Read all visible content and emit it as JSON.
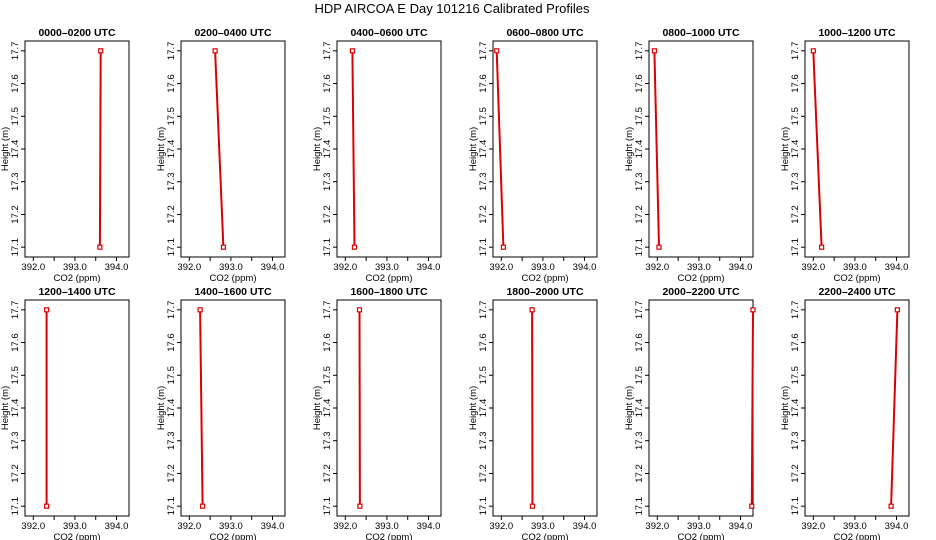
{
  "figure_title": "HDP AIRCOA E  Day 101216  Calibrated Profiles",
  "chart_data": [
    {
      "type": "line",
      "title": "0000–0200 UTC",
      "xlabel": "CO2 (ppm)",
      "ylabel": "Height (m)",
      "xlim": [
        391.8,
        394.3
      ],
      "ylim": [
        17.07,
        17.73
      ],
      "xticks": [
        "392.0",
        "393.0",
        "394.0"
      ],
      "yticks": [
        "17.1",
        "17.2",
        "17.3",
        "17.4",
        "17.5",
        "17.6",
        "17.7"
      ],
      "series": [
        {
          "x": [
            393.6,
            393.62
          ],
          "y": [
            17.1,
            17.7
          ]
        }
      ]
    },
    {
      "type": "line",
      "title": "0200–0400 UTC",
      "xlabel": "CO2 (ppm)",
      "ylabel": "Height (m)",
      "xlim": [
        391.8,
        394.3
      ],
      "ylim": [
        17.07,
        17.73
      ],
      "xticks": [
        "392.0",
        "393.0",
        "394.0"
      ],
      "yticks": [
        "17.1",
        "17.2",
        "17.3",
        "17.4",
        "17.5",
        "17.6",
        "17.7"
      ],
      "series": [
        {
          "x": [
            392.82,
            392.62
          ],
          "y": [
            17.1,
            17.7
          ]
        }
      ]
    },
    {
      "type": "line",
      "title": "0400–0600 UTC",
      "xlabel": "CO2 (ppm)",
      "ylabel": "Height (m)",
      "xlim": [
        391.8,
        394.3
      ],
      "ylim": [
        17.07,
        17.73
      ],
      "xticks": [
        "392.0",
        "393.0",
        "394.0"
      ],
      "yticks": [
        "17.1",
        "17.2",
        "17.3",
        "17.4",
        "17.5",
        "17.6",
        "17.7"
      ],
      "series": [
        {
          "x": [
            392.22,
            392.17
          ],
          "y": [
            17.1,
            17.7
          ]
        }
      ]
    },
    {
      "type": "line",
      "title": "0600–0800 UTC",
      "xlabel": "CO2 (ppm)",
      "ylabel": "Height (m)",
      "xlim": [
        391.8,
        394.3
      ],
      "ylim": [
        17.07,
        17.73
      ],
      "xticks": [
        "392.0",
        "393.0",
        "394.0"
      ],
      "yticks": [
        "17.1",
        "17.2",
        "17.3",
        "17.4",
        "17.5",
        "17.6",
        "17.7"
      ],
      "series": [
        {
          "x": [
            392.05,
            391.89
          ],
          "y": [
            17.1,
            17.7
          ]
        }
      ]
    },
    {
      "type": "line",
      "title": "0800–1000 UTC",
      "xlabel": "CO2 (ppm)",
      "ylabel": "Height (m)",
      "xlim": [
        391.8,
        394.3
      ],
      "ylim": [
        17.07,
        17.73
      ],
      "xticks": [
        "392.0",
        "393.0",
        "394.0"
      ],
      "yticks": [
        "17.1",
        "17.2",
        "17.3",
        "17.4",
        "17.5",
        "17.6",
        "17.7"
      ],
      "series": [
        {
          "x": [
            392.04,
            391.93
          ],
          "y": [
            17.1,
            17.7
          ]
        }
      ]
    },
    {
      "type": "line",
      "title": "1000–1200 UTC",
      "xlabel": "CO2 (ppm)",
      "ylabel": "Height (m)",
      "xlim": [
        391.8,
        394.3
      ],
      "ylim": [
        17.07,
        17.73
      ],
      "xticks": [
        "392.0",
        "393.0",
        "394.0"
      ],
      "yticks": [
        "17.1",
        "17.2",
        "17.3",
        "17.4",
        "17.5",
        "17.6",
        "17.7"
      ],
      "series": [
        {
          "x": [
            392.2,
            392.0
          ],
          "y": [
            17.1,
            17.7
          ]
        }
      ]
    },
    {
      "type": "line",
      "title": "1200–1400 UTC",
      "xlabel": "CO2 (ppm)",
      "ylabel": "Height (m)",
      "xlim": [
        391.8,
        394.3
      ],
      "ylim": [
        17.07,
        17.73
      ],
      "xticks": [
        "392.0",
        "393.0",
        "394.0"
      ],
      "yticks": [
        "17.1",
        "17.2",
        "17.3",
        "17.4",
        "17.5",
        "17.6",
        "17.7"
      ],
      "series": [
        {
          "x": [
            392.32,
            392.32
          ],
          "y": [
            17.1,
            17.7
          ]
        }
      ]
    },
    {
      "type": "line",
      "title": "1400–1600 UTC",
      "xlabel": "CO2 (ppm)",
      "ylabel": "Height (m)",
      "xlim": [
        391.8,
        394.3
      ],
      "ylim": [
        17.07,
        17.73
      ],
      "xticks": [
        "392.0",
        "393.0",
        "394.0"
      ],
      "yticks": [
        "17.1",
        "17.2",
        "17.3",
        "17.4",
        "17.5",
        "17.6",
        "17.7"
      ],
      "series": [
        {
          "x": [
            392.32,
            392.26
          ],
          "y": [
            17.1,
            17.7
          ]
        }
      ]
    },
    {
      "type": "line",
      "title": "1600–1800 UTC",
      "xlabel": "CO2 (ppm)",
      "ylabel": "Height (m)",
      "xlim": [
        391.8,
        394.3
      ],
      "ylim": [
        17.07,
        17.73
      ],
      "xticks": [
        "392.0",
        "393.0",
        "394.0"
      ],
      "yticks": [
        "17.1",
        "17.2",
        "17.3",
        "17.4",
        "17.5",
        "17.6",
        "17.7"
      ],
      "series": [
        {
          "x": [
            392.35,
            392.34
          ],
          "y": [
            17.1,
            17.7
          ]
        }
      ]
    },
    {
      "type": "line",
      "title": "1800–2000 UTC",
      "xlabel": "CO2 (ppm)",
      "ylabel": "Height (m)",
      "xlim": [
        391.8,
        394.3
      ],
      "ylim": [
        17.07,
        17.73
      ],
      "xticks": [
        "392.0",
        "393.0",
        "394.0"
      ],
      "yticks": [
        "17.1",
        "17.2",
        "17.3",
        "17.4",
        "17.5",
        "17.6",
        "17.7"
      ],
      "series": [
        {
          "x": [
            392.75,
            392.74
          ],
          "y": [
            17.1,
            17.7
          ]
        }
      ]
    },
    {
      "type": "line",
      "title": "2000–2200 UTC",
      "xlabel": "CO2 (ppm)",
      "ylabel": "Height (m)",
      "xlim": [
        391.8,
        394.3
      ],
      "ylim": [
        17.07,
        17.73
      ],
      "xticks": [
        "392.0",
        "393.0",
        "394.0"
      ],
      "yticks": [
        "17.1",
        "17.2",
        "17.3",
        "17.4",
        "17.5",
        "17.6",
        "17.7"
      ],
      "series": [
        {
          "x": [
            394.27,
            394.3
          ],
          "y": [
            17.1,
            17.7
          ]
        }
      ]
    },
    {
      "type": "line",
      "title": "2200–2400 UTC",
      "xlabel": "CO2 (ppm)",
      "ylabel": "Height (m)",
      "xlim": [
        391.8,
        394.3
      ],
      "ylim": [
        17.07,
        17.73
      ],
      "xticks": [
        "392.0",
        "393.0",
        "394.0"
      ],
      "yticks": [
        "17.1",
        "17.2",
        "17.3",
        "17.4",
        "17.5",
        "17.6",
        "17.7"
      ],
      "series": [
        {
          "x": [
            393.87,
            394.02
          ],
          "y": [
            17.1,
            17.7
          ]
        }
      ]
    }
  ],
  "colors": {
    "profile_line": "#dd0000",
    "marker": "#dd0000",
    "axes": "#000000"
  }
}
